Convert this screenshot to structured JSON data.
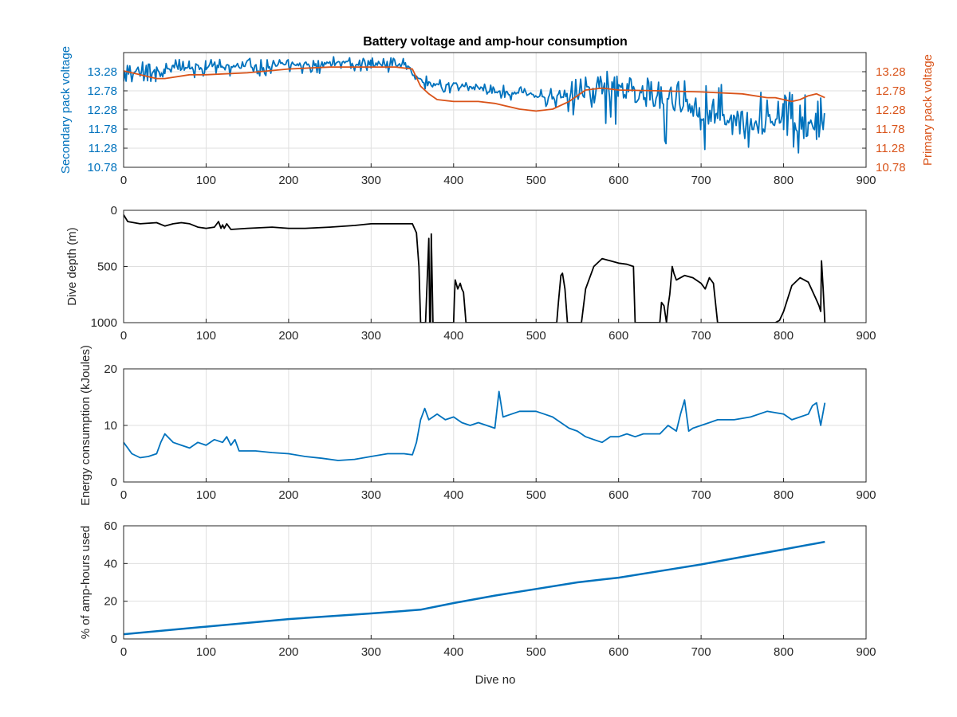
{
  "title": "Battery voltage and amp-hour consumption",
  "colors": {
    "secondary": "#0072BD",
    "primary": "#D95319",
    "depth": "#000000",
    "energy": "#0072BD",
    "amphours": "#0072BD",
    "grid": "#dfdfdf",
    "axis": "#262626"
  },
  "chart_data": [
    {
      "type": "line",
      "title": "Battery voltage and amp-hour consumption",
      "xlabel": "",
      "ylabel": "Secondary pack voltage",
      "ylabel_right": "Primary pack voltage",
      "xlim": [
        0,
        900
      ],
      "ylim": [
        10.78,
        13.78
      ],
      "xticks": [
        "0",
        "100",
        "200",
        "300",
        "400",
        "500",
        "600",
        "700",
        "800",
        "900"
      ],
      "yticks": [
        "10.78",
        "11.28",
        "11.78",
        "12.28",
        "12.78",
        "13.28"
      ],
      "yticks_right": [
        "10.78",
        "11.28",
        "11.78",
        "12.28",
        "12.78",
        "13.28"
      ],
      "grid": true,
      "series": [
        {
          "name": "Secondary pack voltage",
          "axis": "left",
          "color": "#0072BD",
          "x": [
            0,
            10,
            20,
            30,
            40,
            50,
            60,
            80,
            100,
            120,
            150,
            200,
            250,
            300,
            340,
            355,
            370,
            400,
            430,
            450,
            480,
            500,
            530,
            560,
            580,
            600,
            620,
            650,
            680,
            700,
            720,
            750,
            780,
            800,
            820,
            830,
            840,
            845,
            848,
            850
          ],
          "y": [
            13.2,
            13.25,
            13.3,
            13.2,
            13.3,
            13.28,
            13.35,
            13.35,
            13.4,
            13.4,
            13.42,
            13.45,
            13.48,
            13.48,
            13.45,
            13.1,
            12.95,
            12.9,
            12.85,
            12.75,
            12.7,
            12.65,
            12.6,
            12.7,
            12.85,
            12.8,
            12.65,
            12.45,
            12.4,
            12.2,
            12.0,
            12.05,
            11.9,
            11.8,
            11.7,
            11.75,
            11.65,
            11.8,
            11.9,
            12.1
          ],
          "y_max": [
            13.45,
            13.5,
            13.55,
            13.5,
            13.55,
            13.55,
            13.6,
            13.6,
            13.62,
            13.62,
            13.65,
            13.65,
            13.68,
            13.68,
            13.62,
            13.3,
            13.15,
            13.05,
            13.0,
            12.95,
            12.9,
            12.85,
            12.9,
            13.2,
            13.38,
            13.2,
            13.1,
            13.2,
            13.15,
            13.1,
            13.0,
            13.05,
            12.9,
            12.85,
            12.8,
            12.8,
            12.75,
            12.75,
            12.7,
            12.7
          ],
          "y_min": [
            12.8,
            12.95,
            13.0,
            12.95,
            13.0,
            13.05,
            13.1,
            13.1,
            13.15,
            13.15,
            13.15,
            13.2,
            13.25,
            13.25,
            13.25,
            12.85,
            12.75,
            12.7,
            12.6,
            12.55,
            12.5,
            12.4,
            12.2,
            11.9,
            11.85,
            11.9,
            11.7,
            11.4,
            11.35,
            11.25,
            11.2,
            11.25,
            11.15,
            11.1,
            11.0,
            11.05,
            10.9,
            11.2,
            11.5,
            11.7
          ]
        },
        {
          "name": "Primary pack voltage",
          "axis": "right",
          "color": "#D95319",
          "x": [
            0,
            10,
            20,
            30,
            40,
            50,
            80,
            100,
            150,
            200,
            250,
            300,
            330,
            350,
            360,
            370,
            380,
            400,
            430,
            450,
            480,
            500,
            520,
            540,
            560,
            580,
            600,
            650,
            700,
            750,
            780,
            790,
            800,
            810,
            820,
            830,
            840,
            850
          ],
          "y": [
            13.3,
            13.25,
            13.2,
            13.15,
            13.1,
            13.1,
            13.2,
            13.2,
            13.25,
            13.35,
            13.4,
            13.4,
            13.4,
            13.35,
            12.9,
            12.7,
            12.55,
            12.5,
            12.5,
            12.45,
            12.3,
            12.25,
            12.3,
            12.5,
            12.8,
            12.85,
            12.8,
            12.78,
            12.75,
            12.7,
            12.6,
            12.6,
            12.55,
            12.5,
            12.55,
            12.65,
            12.7,
            12.6
          ]
        }
      ]
    },
    {
      "type": "line",
      "xlabel": "",
      "ylabel": "Dive depth (m)",
      "xlim": [
        0,
        900
      ],
      "ylim": [
        0,
        1000
      ],
      "y_reversed": true,
      "xticks": [
        "0",
        "100",
        "200",
        "300",
        "400",
        "500",
        "600",
        "700",
        "800",
        "900"
      ],
      "yticks": [
        "0",
        "500",
        "1000"
      ],
      "grid": true,
      "series": [
        {
          "color": "#000000",
          "x": [
            0,
            5,
            20,
            40,
            50,
            60,
            70,
            80,
            90,
            100,
            110,
            115,
            118,
            120,
            122,
            125,
            130,
            150,
            180,
            200,
            220,
            250,
            280,
            300,
            320,
            345,
            350,
            355,
            358,
            360,
            362,
            365,
            366,
            370,
            371,
            372,
            373,
            375,
            380,
            390,
            400,
            401,
            402,
            405,
            408,
            410,
            412,
            415,
            420,
            440,
            460,
            480,
            500,
            520,
            525,
            527,
            530,
            532,
            535,
            538,
            540,
            545,
            550,
            555,
            560,
            570,
            580,
            590,
            600,
            610,
            618,
            620,
            630,
            640,
            650,
            652,
            655,
            658,
            660,
            662,
            665,
            667,
            670,
            680,
            690,
            700,
            705,
            710,
            715,
            720,
            730,
            750,
            770,
            780,
            790,
            795,
            800,
            810,
            820,
            830,
            840,
            843,
            845,
            846,
            848,
            850
          ],
          "y": [
            40,
            100,
            120,
            110,
            140,
            120,
            110,
            120,
            150,
            160,
            150,
            100,
            160,
            130,
            160,
            120,
            170,
            160,
            150,
            160,
            160,
            150,
            135,
            120,
            120,
            120,
            120,
            200,
            500,
            1000,
            1000,
            1000,
            1000,
            250,
            1000,
            1000,
            210,
            1000,
            1000,
            1000,
            1000,
            780,
            620,
            700,
            650,
            700,
            730,
            1000,
            1000,
            1000,
            1000,
            1000,
            1000,
            1000,
            1000,
            820,
            580,
            560,
            700,
            1000,
            1000,
            1000,
            1000,
            1000,
            700,
            500,
            430,
            450,
            470,
            480,
            500,
            1000,
            1000,
            1000,
            1000,
            820,
            850,
            1000,
            850,
            750,
            500,
            560,
            620,
            580,
            600,
            650,
            700,
            600,
            650,
            1000,
            1000,
            1000,
            1000,
            1000,
            1000,
            980,
            900,
            670,
            600,
            640,
            800,
            850,
            900,
            450,
            700,
            1000
          ]
        }
      ]
    },
    {
      "type": "line",
      "xlabel": "",
      "ylabel": "Energy consumption (kJoules)",
      "xlim": [
        0,
        900
      ],
      "ylim": [
        0,
        20
      ],
      "xticks": [
        "0",
        "100",
        "200",
        "300",
        "400",
        "500",
        "600",
        "700",
        "800",
        "900"
      ],
      "yticks": [
        "0",
        "10",
        "20"
      ],
      "grid": true,
      "series": [
        {
          "color": "#0072BD",
          "x": [
            0,
            5,
            10,
            20,
            30,
            40,
            45,
            50,
            60,
            70,
            80,
            90,
            100,
            110,
            120,
            125,
            130,
            135,
            140,
            160,
            180,
            200,
            220,
            240,
            260,
            280,
            300,
            320,
            340,
            350,
            355,
            360,
            365,
            370,
            380,
            390,
            400,
            410,
            420,
            430,
            440,
            450,
            455,
            460,
            480,
            500,
            510,
            520,
            530,
            540,
            550,
            560,
            570,
            580,
            590,
            600,
            610,
            620,
            630,
            640,
            650,
            660,
            670,
            675,
            680,
            685,
            690,
            700,
            710,
            720,
            740,
            760,
            780,
            800,
            810,
            820,
            830,
            835,
            840,
            845,
            850
          ],
          "y": [
            7,
            6,
            5,
            4.3,
            4.5,
            5,
            7,
            8.5,
            7,
            6.5,
            6,
            7,
            6.5,
            7.5,
            7,
            8,
            6.5,
            7.5,
            5.5,
            5.5,
            5.2,
            5,
            4.5,
            4.2,
            3.8,
            4,
            4.5,
            5,
            5,
            4.8,
            7,
            11,
            13,
            11,
            12,
            11,
            11.5,
            10.5,
            10,
            10.5,
            10,
            9.5,
            16,
            11.5,
            12.5,
            12.5,
            12,
            11.5,
            10.5,
            9.5,
            9,
            8,
            7.5,
            7,
            8,
            8,
            8.5,
            8,
            8.5,
            8.5,
            8.5,
            10,
            9,
            12,
            14.5,
            9,
            9.5,
            10,
            10.5,
            11,
            11,
            11.5,
            12.5,
            12,
            11,
            11.5,
            12,
            13.5,
            14,
            10,
            14
          ]
        }
      ]
    },
    {
      "type": "line",
      "xlabel": "Dive no",
      "ylabel": "% of amp-hours used",
      "xlim": [
        0,
        900
      ],
      "ylim": [
        0,
        60
      ],
      "xticks": [
        "0",
        "100",
        "200",
        "300",
        "400",
        "500",
        "600",
        "700",
        "800",
        "900"
      ],
      "yticks": [
        "0",
        "20",
        "40",
        "60"
      ],
      "grid": true,
      "series": [
        {
          "color": "#0072BD",
          "x": [
            0,
            100,
            200,
            300,
            360,
            400,
            450,
            500,
            550,
            600,
            650,
            700,
            750,
            800,
            850
          ],
          "y": [
            2.5,
            6.5,
            10.5,
            13.5,
            15.5,
            19,
            23,
            26.5,
            30,
            32.5,
            36,
            39.5,
            43.5,
            47.5,
            51.5
          ]
        }
      ]
    }
  ]
}
